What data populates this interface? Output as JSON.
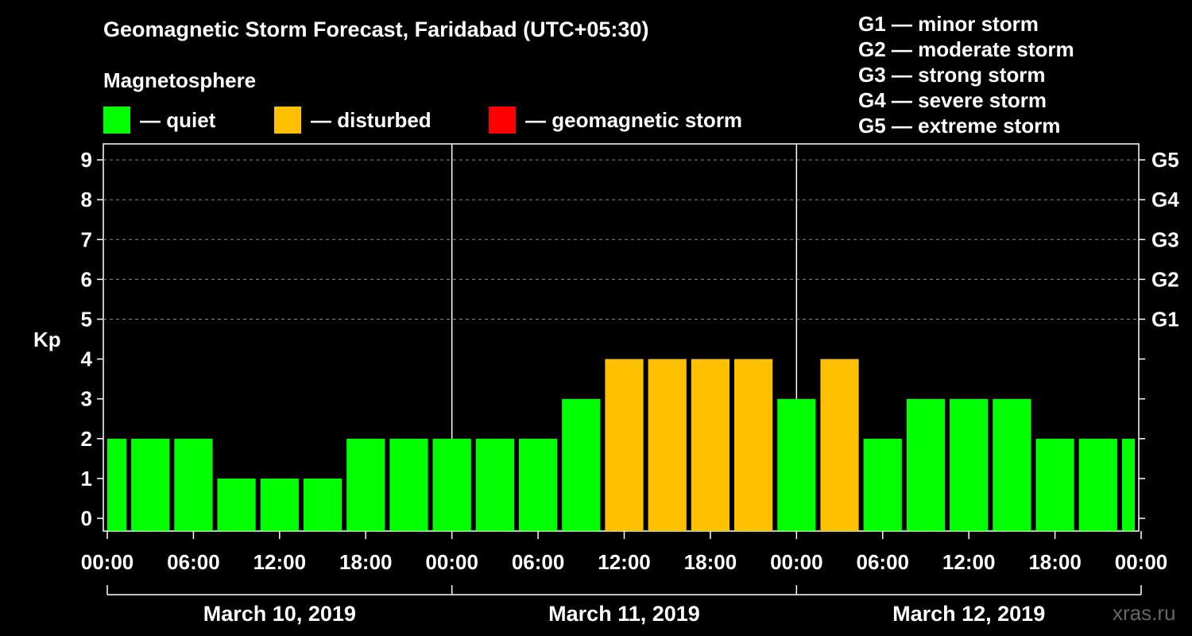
{
  "title": "Geomagnetic Storm Forecast, Faridabad (UTC+05:30)",
  "legend": {
    "heading": "Magnetosphere",
    "items": [
      {
        "label": "— quiet",
        "color": "#00ff00"
      },
      {
        "label": "— disturbed",
        "color": "#ffc000"
      },
      {
        "label": "— geomagnetic storm",
        "color": "#ff0000"
      }
    ]
  },
  "storm_scale": [
    "G1 — minor storm",
    "G2 — moderate storm",
    "G3 — strong storm",
    "G4 — severe storm",
    "G5 — extreme storm"
  ],
  "watermark": "xras.ru",
  "chart_data": {
    "type": "bar",
    "ylabel": "Kp",
    "ylim": [
      0,
      9
    ],
    "yticks": [
      0,
      1,
      2,
      3,
      4,
      5,
      6,
      7,
      8,
      9
    ],
    "right_ticks": [
      {
        "value": 5,
        "label": "G1"
      },
      {
        "value": 6,
        "label": "G2"
      },
      {
        "value": 7,
        "label": "G3"
      },
      {
        "value": 8,
        "label": "G4"
      },
      {
        "value": 9,
        "label": "G5"
      }
    ],
    "x_tick_labels": [
      "00:00",
      "06:00",
      "12:00",
      "18:00",
      "00:00",
      "06:00",
      "12:00",
      "18:00",
      "00:00",
      "06:00",
      "12:00",
      "18:00",
      "00:00"
    ],
    "days": [
      "March 10, 2019",
      "March 11, 2019",
      "March 12, 2019"
    ],
    "bar_interval_hours": 3,
    "first_bar_start_hour": -1.5,
    "values": [
      2,
      2,
      2,
      1,
      1,
      1,
      2,
      2,
      2,
      2,
      2,
      3,
      4,
      4,
      4,
      4,
      3,
      4,
      2,
      3,
      3,
      3,
      2,
      2,
      2
    ],
    "categories": [
      "quiet",
      "quiet",
      "quiet",
      "quiet",
      "quiet",
      "quiet",
      "quiet",
      "quiet",
      "quiet",
      "quiet",
      "quiet",
      "quiet",
      "disturbed",
      "disturbed",
      "disturbed",
      "disturbed",
      "quiet",
      "disturbed",
      "quiet",
      "quiet",
      "quiet",
      "quiet",
      "quiet",
      "quiet",
      "quiet"
    ],
    "colors": {
      "quiet": "#00ff00",
      "disturbed": "#ffc000",
      "storm": "#ff0000"
    }
  }
}
